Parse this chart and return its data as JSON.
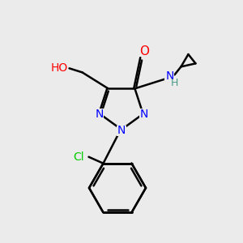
{
  "bg_color": "#ebebeb",
  "atom_colors": {
    "C": "#000000",
    "N": "#0000ff",
    "O": "#ff0000",
    "Cl": "#00cc00",
    "H": "#4a9a8a"
  },
  "bond_color": "#000000",
  "bond_width": 1.8,
  "figsize": [
    3.0,
    3.0
  ],
  "dpi": 100
}
